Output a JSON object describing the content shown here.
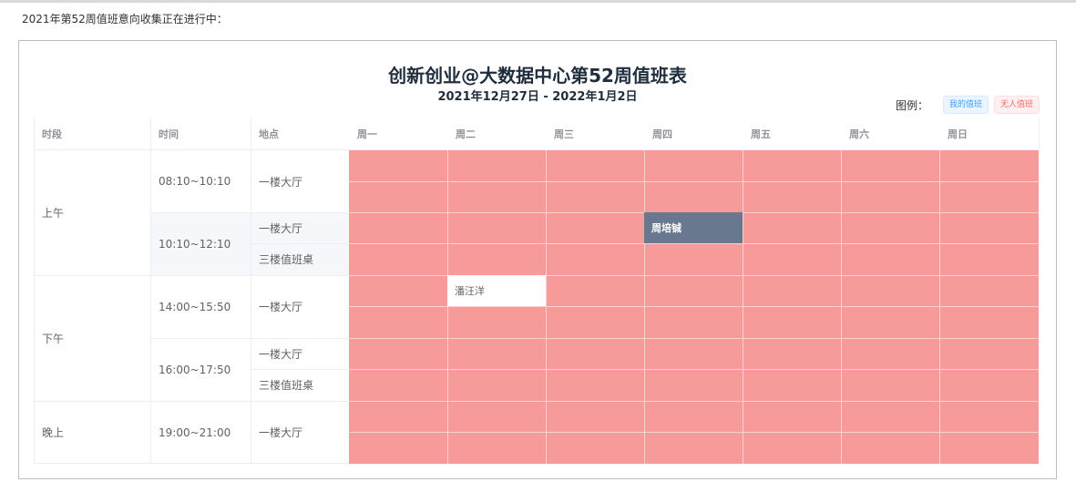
{
  "notice": "2021年第52周值班意向收集正在进行中：",
  "title": "创新创业@大数据中心第52周值班表",
  "subtitle": "2021年12月27日 - 2022年1月2日",
  "legend": {
    "label": "图例：",
    "mine": "我的值班",
    "none": "无人值班"
  },
  "colors": {
    "unassigned": "#f79a9a",
    "mine_tag": "#409eff",
    "none_tag": "#f56c6c",
    "assigned_other": "#68788f"
  },
  "headers": {
    "period": "时段",
    "time": "时间",
    "location": "地点",
    "days": [
      "周一",
      "周二",
      "周三",
      "周四",
      "周五",
      "周六",
      "周日"
    ]
  },
  "periods": [
    "上午",
    "下午",
    "晚上"
  ],
  "times": [
    "08:10~10:10",
    "10:10~12:10",
    "14:00~15:50",
    "16:00~17:50",
    "19:00~21:00"
  ],
  "locations": {
    "hall": "一楼大厅",
    "desk": "三楼值班桌"
  },
  "assignments": [
    {
      "name": "周培铖",
      "day": "周四",
      "time": "10:10~12:10",
      "location": "一楼大厅",
      "style": "other"
    },
    {
      "name": "潘汪洋",
      "day": "周二",
      "time": "14:00~15:50",
      "location": "一楼大厅",
      "style": "mine"
    }
  ]
}
